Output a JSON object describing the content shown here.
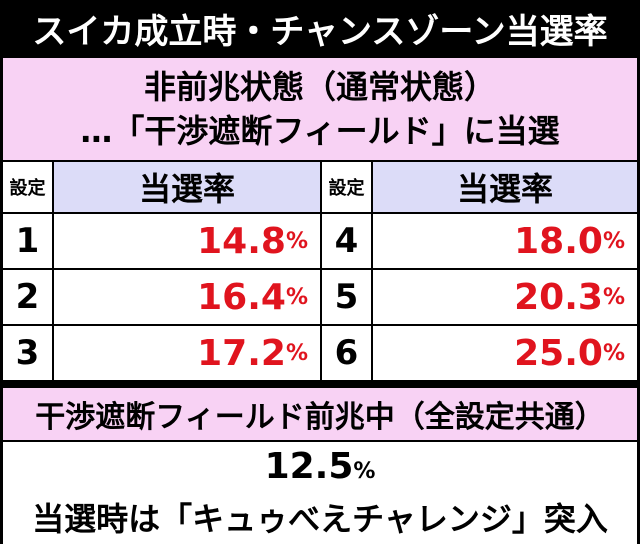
{
  "title": "スイカ成立時・チャンスゾーン当選率",
  "section1": {
    "lines": [
      "非前兆状態（通常状態）",
      "…「干渉遮断フィールド」に当選"
    ],
    "table": {
      "header": [
        "設定",
        "当選率",
        "設定",
        "当選率"
      ],
      "rows": [
        {
          "setting": "1",
          "rate": "14.8",
          "unit": "%"
        },
        {
          "setting": "2",
          "rate": "16.4",
          "unit": "%"
        },
        {
          "setting": "3",
          "rate": "17.2",
          "unit": "%"
        },
        {
          "setting": "4",
          "rate": "18.0",
          "unit": "%"
        },
        {
          "setting": "5",
          "rate": "20.3",
          "unit": "%"
        },
        {
          "setting": "6",
          "rate": "25.0",
          "unit": "%"
        }
      ]
    }
  },
  "section2": {
    "header": "干渉遮断フィールド前兆中（全設定共通）",
    "rate": "12.5",
    "unit": "%",
    "note": "当選時は「キュゥべえチャレンジ」突入"
  }
}
